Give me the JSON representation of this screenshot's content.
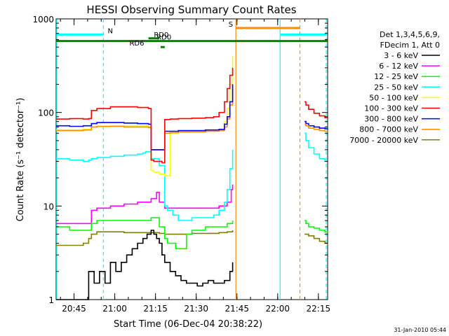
{
  "chart_data": {
    "type": "line",
    "title": "HESSI Observing Summary Count Rates",
    "xlabel": "Start Time (06-Dec-04 20:38:22)",
    "ylabel": "Count Rate (s⁻¹ detector⁻¹)",
    "x_unit": "minutes after 20:38:22",
    "xlim": [
      0,
      100
    ],
    "ylim": [
      1,
      1000
    ],
    "y_scale": "log",
    "grid": false,
    "legend_position": "right",
    "footer": "31-Jan-2010 05:44",
    "x_ticks": [
      {
        "label": "20:45",
        "value": 6.6
      },
      {
        "label": "21:00",
        "value": 21.6
      },
      {
        "label": "21:15",
        "value": 36.6
      },
      {
        "label": "21:30",
        "value": 51.6
      },
      {
        "label": "21:45",
        "value": 66.6
      },
      {
        "label": "22:00",
        "value": 81.6
      },
      {
        "label": "22:15",
        "value": 96.6
      }
    ],
    "y_ticks": [
      {
        "label": "1",
        "value": 1
      },
      {
        "label": "10",
        "value": 10
      },
      {
        "label": "100",
        "value": 100
      },
      {
        "label": "1000",
        "value": 1000
      }
    ],
    "legend_header": [
      "Det 1,3,4,5,6,9,",
      "FDecim 1, Att 0"
    ],
    "series": [
      {
        "name": "3 - 6 keV",
        "color": "#000000",
        "x": [
          0,
          11,
          12,
          14,
          16,
          18,
          20,
          22,
          24,
          26,
          28,
          30,
          32,
          33.5,
          35,
          36,
          37,
          38,
          39,
          40,
          42,
          44,
          46,
          48,
          50,
          52,
          54,
          56,
          58,
          60,
          62,
          64,
          65
        ],
        "y": [
          1,
          1,
          2,
          1.5,
          2,
          1.5,
          2.5,
          2,
          2.5,
          3,
          3.5,
          4,
          4.5,
          5,
          5.5,
          5,
          4.5,
          4,
          3,
          2.5,
          2,
          1.8,
          1.6,
          1.5,
          1.5,
          1.4,
          1.5,
          1.6,
          1.5,
          1.5,
          1.6,
          2,
          2.5
        ]
      },
      {
        "name": "6 - 12 keV",
        "color": "#ff00ff",
        "x": [
          0,
          5,
          10,
          12,
          13,
          15,
          20,
          25,
          30,
          35,
          37,
          38,
          40,
          41,
          44,
          46,
          48,
          50,
          55,
          60,
          63,
          64.5,
          65
        ],
        "y": [
          6.5,
          6.5,
          6.5,
          6.5,
          9,
          9.5,
          10,
          10.5,
          11,
          12,
          14,
          11,
          9.5,
          9.5,
          9.5,
          9.5,
          9.5,
          9.5,
          9.5,
          10,
          11,
          15,
          17
        ]
      },
      {
        "name": "12 - 25 keV",
        "color": "#00ff00",
        "x": [
          0,
          5,
          10,
          12,
          13,
          15,
          20,
          25,
          30,
          35,
          38,
          40,
          41,
          44,
          46,
          48,
          50,
          55,
          60,
          63,
          65
        ],
        "y": [
          6,
          5.5,
          5.5,
          5.5,
          6.5,
          7,
          7,
          7,
          7,
          7.5,
          6,
          4.5,
          4,
          3.5,
          3.5,
          5,
          5.5,
          6,
          6,
          6.5,
          7
        ]
      },
      {
        "name": "25 - 50 keV",
        "color": "#00ffff",
        "x": [
          0,
          5,
          10,
          12,
          13,
          15,
          20,
          25,
          30,
          32,
          33,
          35,
          38,
          40,
          41,
          43,
          45,
          50,
          55,
          58,
          60,
          62,
          63,
          64,
          65
        ],
        "y": [
          32,
          31,
          30,
          31,
          32,
          33,
          34,
          35,
          36,
          37,
          38,
          32,
          27,
          10,
          9,
          8,
          7,
          7.5,
          7.5,
          8,
          9,
          11,
          15,
          25,
          40
        ]
      },
      {
        "name": "50 - 100 keV",
        "color": "#ffff00",
        "x": [
          0,
          10,
          12,
          13,
          20,
          30,
          34,
          35,
          36,
          38,
          40,
          42,
          45,
          50,
          55,
          60,
          62,
          63,
          64,
          65
        ],
        "y": [
          65,
          66,
          66,
          70,
          72,
          72,
          70,
          24,
          23,
          22,
          21,
          60,
          62,
          63,
          64,
          66,
          80,
          110,
          200,
          400
        ]
      },
      {
        "name": "100 - 300 keV",
        "color": "#ff0000",
        "x": [
          0,
          5,
          10,
          12,
          13,
          15,
          20,
          25,
          30,
          34,
          35,
          36,
          38,
          39,
          40,
          42,
          45,
          50,
          55,
          58,
          60,
          62,
          63,
          64,
          65
        ],
        "y": [
          85,
          86,
          85,
          86,
          105,
          110,
          115,
          115,
          113,
          110,
          31,
          30,
          30,
          29,
          84,
          85,
          86,
          87,
          88,
          90,
          100,
          130,
          180,
          250,
          300
        ]
      },
      {
        "name": "300 - 800 keV",
        "color": "#0000ff",
        "x": [
          0,
          5,
          10,
          12,
          13,
          15,
          20,
          25,
          30,
          34,
          35,
          36,
          38,
          39,
          40,
          42,
          45,
          50,
          55,
          60,
          62,
          63,
          64,
          65
        ],
        "y": [
          72,
          71,
          72,
          72,
          76,
          78,
          78,
          77,
          76,
          75,
          40,
          40,
          40,
          40,
          63,
          63,
          64,
          64,
          65,
          66,
          75,
          90,
          130,
          200
        ]
      },
      {
        "name": "800 - 7000 keV",
        "color": "#ff8c00",
        "x": [
          0,
          5,
          10,
          12,
          13,
          15,
          20,
          25,
          30,
          34,
          35,
          36,
          38,
          39,
          40,
          42,
          45,
          50,
          55,
          60,
          62,
          63,
          64,
          65
        ],
        "y": [
          64,
          64,
          65,
          65,
          70,
          71,
          71,
          70,
          70,
          69,
          40,
          40,
          40,
          40,
          60,
          61,
          62,
          62,
          63,
          64,
          70,
          85,
          120,
          180
        ]
      },
      {
        "name": "7000 - 20000 keV",
        "color": "#808000",
        "x": [
          0,
          5,
          10,
          12,
          13,
          15,
          20,
          25,
          30,
          35,
          38,
          40,
          42,
          45,
          50,
          55,
          60,
          63,
          65
        ],
        "y": [
          3.8,
          3.8,
          4,
          4.5,
          5,
          5.3,
          5.3,
          5.2,
          5.2,
          5.2,
          5.1,
          5,
          5,
          5,
          5.1,
          5.1,
          5.2,
          5.3,
          5.5
        ]
      }
    ],
    "series_after_gap": [
      {
        "color": "#ff0000",
        "x": [
          91.5,
          92,
          93,
          95,
          97,
          99,
          100
        ],
        "y": [
          130,
          120,
          108,
          98,
          92,
          88,
          87
        ]
      },
      {
        "color": "#0000ff",
        "x": [
          91.5,
          92,
          93,
          95,
          97,
          99,
          100
        ],
        "y": [
          80,
          76,
          72,
          70,
          68,
          67,
          66
        ]
      },
      {
        "color": "#ff8c00",
        "x": [
          91.5,
          92,
          93,
          95,
          97,
          99,
          100
        ],
        "y": [
          75,
          72,
          68,
          66,
          64,
          63,
          62
        ]
      },
      {
        "color": "#00ffff",
        "x": [
          91.5,
          92,
          93,
          95,
          97,
          99,
          100
        ],
        "y": [
          60,
          50,
          42,
          36,
          32,
          30,
          30
        ]
      },
      {
        "color": "#00ff00",
        "x": [
          91.5,
          92,
          93,
          95,
          97,
          99,
          100
        ],
        "y": [
          7,
          6.5,
          6,
          5.8,
          5.5,
          5.3,
          5.2
        ]
      },
      {
        "color": "#808000",
        "x": [
          91.5,
          92,
          93,
          95,
          97,
          99,
          100
        ],
        "y": [
          5,
          5,
          4.8,
          4.5,
          4.2,
          4,
          3.8
        ]
      }
    ],
    "vertical_markers": [
      {
        "x": 0.2,
        "color": "#00ffff",
        "style": "solid"
      },
      {
        "x": 17.4,
        "color": "#00ffff",
        "style": "dashed"
      },
      {
        "x": 66.2,
        "color": "#ff8c00",
        "style": "solid"
      },
      {
        "x": 82.5,
        "color": "#00ffff",
        "style": "solid"
      },
      {
        "x": 89.8,
        "color": "#ff8c00",
        "style": "dashed"
      },
      {
        "x": 99.5,
        "color": "#00ffff",
        "style": "dashed"
      }
    ],
    "flags": [
      {
        "label": "N",
        "color": "#00ffff",
        "y": 680,
        "segments": [
          [
            0.2,
            17.4
          ],
          [
            82.5,
            99.5
          ]
        ],
        "label_x": 19
      },
      {
        "label": "S",
        "color": "#ff8c00",
        "y": 800,
        "segments": [
          [
            66.2,
            89.8
          ]
        ],
        "label_x": 63.5
      },
      {
        "label": "RD0",
        "color": "#008000",
        "y": 580,
        "segments": [
          [
            0,
            100
          ]
        ],
        "label_x": 37
      },
      {
        "label": "RD0",
        "color": "#008000",
        "y": 620,
        "segments": [
          [
            34,
            38
          ]
        ],
        "label_x": 36
      },
      {
        "label": "RD6",
        "color": "#008000",
        "y": 500,
        "segments": [
          [
            38.5,
            40
          ]
        ],
        "label_x": 27
      }
    ]
  }
}
